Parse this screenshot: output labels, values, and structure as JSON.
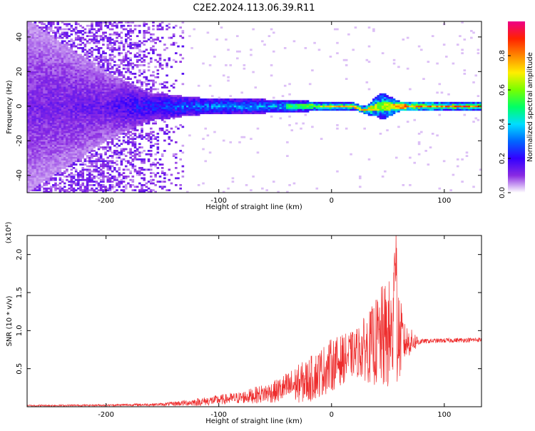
{
  "title": "C2E2.2024.113.06.39.R11",
  "chart_data": [
    {
      "type": "heatmap",
      "xlabel": "Height of straight line (km)",
      "ylabel": "Frequency (Hz)",
      "xlim": [
        -270,
        133
      ],
      "ylim": [
        -50,
        49
      ],
      "xticks": [
        -200,
        -100,
        0,
        100
      ],
      "yticks": [
        -40,
        -20,
        0,
        20,
        40
      ],
      "xtick_labels": [
        "-200",
        "-100",
        "0",
        "100"
      ],
      "ytick_labels": [
        "-40",
        "-20",
        "0",
        "20",
        "40"
      ],
      "colorbar": {
        "label": "Normalized spectral amplitude",
        "range": [
          0,
          1
        ],
        "ticks": [
          0.0,
          0.2,
          0.4,
          0.6,
          0.8
        ],
        "tick_labels": [
          "0.0",
          "0.2",
          "0.4",
          "0.6",
          "0.8"
        ],
        "colormap": [
          "#ffffff",
          "#8a2be2",
          "#3300ff",
          "#0066ff",
          "#00ddff",
          "#00ff66",
          "#77ff00",
          "#ffee00",
          "#ff8800",
          "#ff2200",
          "#ee0088"
        ]
      },
      "band_profile": [
        {
          "x": -270,
          "halfwidth": 50,
          "peak": 0.15
        },
        {
          "x": -200,
          "halfwidth": 20,
          "peak": 0.18
        },
        {
          "x": -160,
          "halfwidth": 8,
          "peak": 0.3
        },
        {
          "x": -120,
          "halfwidth": 5,
          "peak": 0.4
        },
        {
          "x": -60,
          "halfwidth": 4,
          "peak": 0.45
        },
        {
          "x": -20,
          "halfwidth": 3,
          "peak": 0.55
        },
        {
          "x": 0,
          "halfwidth": 2,
          "peak": 0.75
        },
        {
          "x": 30,
          "halfwidth": 2,
          "peak": 0.75
        },
        {
          "x": 45,
          "halfwidth": 8,
          "peak": 0.6
        },
        {
          "x": 60,
          "halfwidth": 3,
          "peak": 0.8
        },
        {
          "x": 100,
          "halfwidth": 2,
          "peak": 0.85
        },
        {
          "x": 133,
          "halfwidth": 2,
          "peak": 0.85
        }
      ]
    },
    {
      "type": "line",
      "xlabel": "Height of straight line (km)",
      "ylabel": "SNR (10 * v/v)",
      "y_multiplier_label": "(x10⁴)",
      "xlim": [
        -270,
        133
      ],
      "ylim": [
        0,
        22500
      ],
      "xticks": [
        -200,
        -100,
        0,
        100
      ],
      "yticks": [
        5000,
        10000,
        15000,
        20000
      ],
      "xtick_labels": [
        "-200",
        "-100",
        "0",
        "100"
      ],
      "ytick_labels": [
        "0.5",
        "1.0",
        "1.5",
        "2.0"
      ],
      "series": [
        {
          "color": "#ee2c2c",
          "envelope": [
            {
              "x": -270,
              "base": 150,
              "noise": 100
            },
            {
              "x": -200,
              "base": 200,
              "noise": 120
            },
            {
              "x": -150,
              "base": 300,
              "noise": 200
            },
            {
              "x": -120,
              "base": 600,
              "noise": 500
            },
            {
              "x": -80,
              "base": 1200,
              "noise": 800
            },
            {
              "x": -50,
              "base": 2000,
              "noise": 1500
            },
            {
              "x": -20,
              "base": 3500,
              "noise": 3000
            },
            {
              "x": 0,
              "base": 5500,
              "noise": 3500
            },
            {
              "x": 20,
              "base": 7000,
              "noise": 3000
            },
            {
              "x": 35,
              "base": 8000,
              "noise": 5000
            },
            {
              "x": 45,
              "base": 9000,
              "noise": 7000
            },
            {
              "x": 57,
              "base": 9500,
              "noise": 8000
            },
            {
              "x": 65,
              "base": 8500,
              "noise": 2500
            },
            {
              "x": 80,
              "base": 8600,
              "noise": 300
            },
            {
              "x": 100,
              "base": 8700,
              "noise": 300
            },
            {
              "x": 133,
              "base": 8800,
              "noise": 300
            }
          ]
        }
      ]
    }
  ]
}
